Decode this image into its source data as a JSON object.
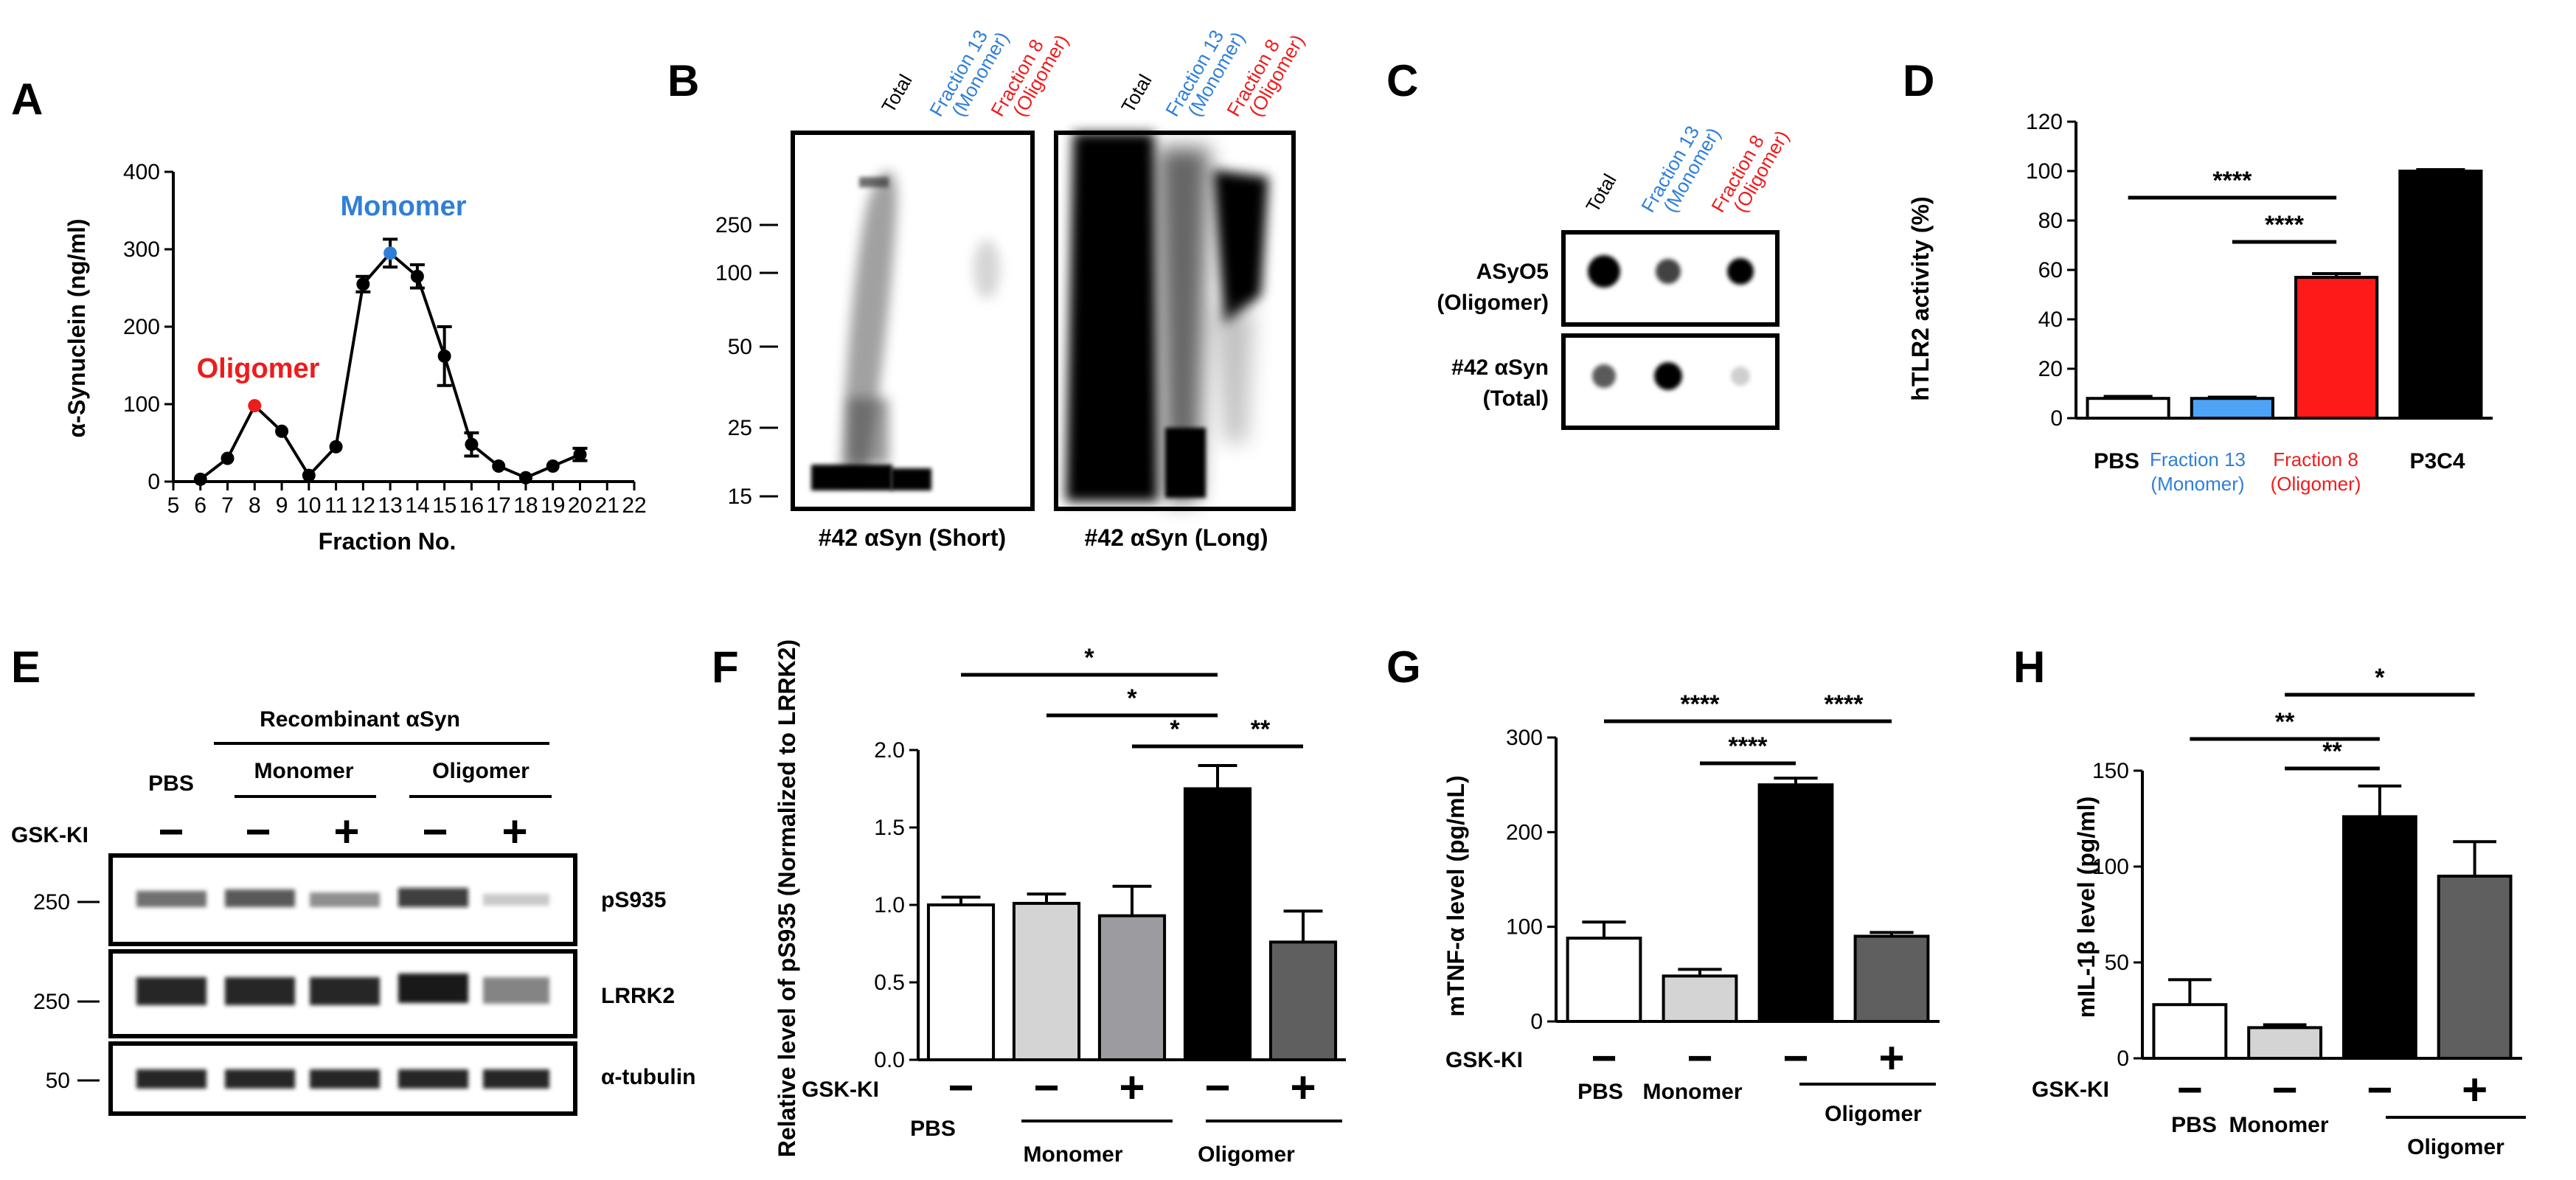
{
  "colors": {
    "black": "#000000",
    "blue": "#2f7fd8",
    "red": "#ee1c1c",
    "white": "#ffffff",
    "lightgray": "#d4d4d4",
    "midgray": "#9c9ca0",
    "darkgray": "#5f5f5f",
    "lightblue": "#4da3f5",
    "brightred": "#ff1a1a"
  },
  "panel_labels": {
    "A": "A",
    "B": "B",
    "C": "C",
    "D": "D",
    "E": "E",
    "F": "F",
    "G": "G",
    "H": "H"
  },
  "lanes": {
    "total": "Total",
    "fraction13": "Fraction 13",
    "monomer_paren": "(Monomer)",
    "fraction8": "Fraction 8",
    "oligomer_paren": "(Oligomer)"
  },
  "panel_b": {
    "mw": [
      "250",
      "100",
      "50",
      "25",
      "15"
    ],
    "caption_short": "#42 αSyn (Short)",
    "caption_long": "#42 αSyn (Long)"
  },
  "panel_c": {
    "row1_l1": "ASyO5",
    "row1_l2": "(Oligomer)",
    "row2_l1": "#42 αSyn",
    "row2_l2": "(Total)"
  },
  "panel_e": {
    "header": "Recombinant  αSyn",
    "pbs": "PBS",
    "monomer": "Monomer",
    "oligomer": "Oligomer",
    "gsk": "GSK-KI",
    "signs": [
      "−",
      "−",
      "+",
      "−",
      "+"
    ],
    "mw": [
      "250",
      "250",
      "50"
    ],
    "rows": [
      "pS935",
      "LRRK2",
      "α-tubulin"
    ]
  },
  "group_labels": {
    "pbs": "PBS",
    "monomer": "Monomer",
    "oligomer": "Oligomer",
    "gsk": "GSK-KI",
    "p3c4": "P3C4",
    "fraction13": "Fraction 13",
    "monomer_paren": "(Monomer)",
    "fraction8": "Fraction 8",
    "oligomer_paren": "(Oligomer)"
  },
  "chart_data": [
    {
      "panel": "A",
      "type": "line",
      "xlabel": "Fraction No.",
      "ylabel": "α-Synuclein (ng/ml)",
      "xlim": [
        5,
        22
      ],
      "ylim": [
        0,
        400
      ],
      "xticks": [
        5,
        6,
        7,
        8,
        9,
        10,
        11,
        12,
        13,
        14,
        15,
        16,
        17,
        18,
        19,
        20,
        21,
        22
      ],
      "yticks": [
        0,
        100,
        200,
        300,
        400
      ],
      "x": [
        6,
        7,
        8,
        9,
        10,
        11,
        12,
        13,
        14,
        15,
        16,
        17,
        18,
        19,
        20
      ],
      "values": [
        3,
        30,
        98,
        65,
        8,
        45,
        255,
        295,
        265,
        162,
        48,
        20,
        5,
        20,
        35
      ],
      "errors": [
        0,
        0,
        0,
        0,
        0,
        0,
        10,
        18,
        15,
        38,
        15,
        0,
        0,
        0,
        8
      ],
      "annotations": [
        {
          "text": "Oligomer",
          "x": 8,
          "color": "red"
        },
        {
          "text": "Monomer",
          "x": 13,
          "color": "blue"
        }
      ]
    },
    {
      "panel": "D",
      "type": "bar",
      "ylabel": "hTLR2 activity (%)",
      "ylim": [
        0,
        120
      ],
      "yticks": [
        0,
        20,
        40,
        60,
        80,
        100,
        120
      ],
      "categories": [
        "PBS",
        "Fraction 13 (Monomer)",
        "Fraction 8 (Oligomer)",
        "P3C4"
      ],
      "values": [
        8,
        8,
        57,
        100
      ],
      "errors": [
        0.8,
        0.5,
        1.5,
        0.6
      ],
      "significance": [
        {
          "from": 0,
          "to": 2,
          "label": "****"
        },
        {
          "from": 1,
          "to": 2,
          "label": "****"
        }
      ]
    },
    {
      "panel": "F",
      "type": "bar",
      "ylabel": "Relative level of pS935 (Normalized to LRRK2)",
      "ylim": [
        0,
        2.0
      ],
      "yticks": [
        0.0,
        0.5,
        1.0,
        1.5,
        2.0
      ],
      "categories": [
        "PBS",
        "Monomer",
        "Monomer + GSK-KI",
        "Oligomer",
        "Oligomer + GSK-KI"
      ],
      "gsk": [
        "−",
        "−",
        "+",
        "−",
        "+"
      ],
      "values": [
        1.0,
        1.01,
        0.93,
        1.75,
        0.76
      ],
      "errors": [
        0.05,
        0.06,
        0.19,
        0.15,
        0.2
      ],
      "significance": [
        {
          "from": 0,
          "to": 3,
          "label": "*"
        },
        {
          "from": 1,
          "to": 3,
          "label": "*"
        },
        {
          "from": 2,
          "to": 3,
          "label": "*"
        },
        {
          "from": 3,
          "to": 4,
          "label": "**"
        }
      ]
    },
    {
      "panel": "G",
      "type": "bar",
      "ylabel": "mTNF-α level (pg/mL)",
      "ylim": [
        0,
        300
      ],
      "yticks": [
        0,
        100,
        200,
        300
      ],
      "categories": [
        "PBS",
        "Monomer",
        "Oligomer",
        "Oligomer + GSK-KI"
      ],
      "gsk": [
        "−",
        "−",
        "−",
        "+"
      ],
      "values": [
        88,
        48,
        250,
        90
      ],
      "errors": [
        17,
        7,
        7,
        4
      ],
      "significance": [
        {
          "from": 0,
          "to": 2,
          "label": "****"
        },
        {
          "from": 1,
          "to": 2,
          "label": "****"
        },
        {
          "from": 2,
          "to": 3,
          "label": "****"
        }
      ]
    },
    {
      "panel": "H",
      "type": "bar",
      "ylabel": "mIL-1β level (pg/ml)",
      "ylim": [
        0,
        150
      ],
      "yticks": [
        0,
        50,
        100,
        150
      ],
      "categories": [
        "PBS",
        "Monomer",
        "Oligomer",
        "Oligomer + GSK-KI"
      ],
      "gsk": [
        "−",
        "−",
        "−",
        "+"
      ],
      "values": [
        28,
        16,
        126,
        95
      ],
      "errors": [
        13,
        1.5,
        16,
        18
      ],
      "significance": [
        {
          "from": 0,
          "to": 2,
          "label": "**"
        },
        {
          "from": 1,
          "to": 2,
          "label": "**"
        },
        {
          "from": 1,
          "to": 3,
          "label": "*"
        }
      ]
    }
  ]
}
